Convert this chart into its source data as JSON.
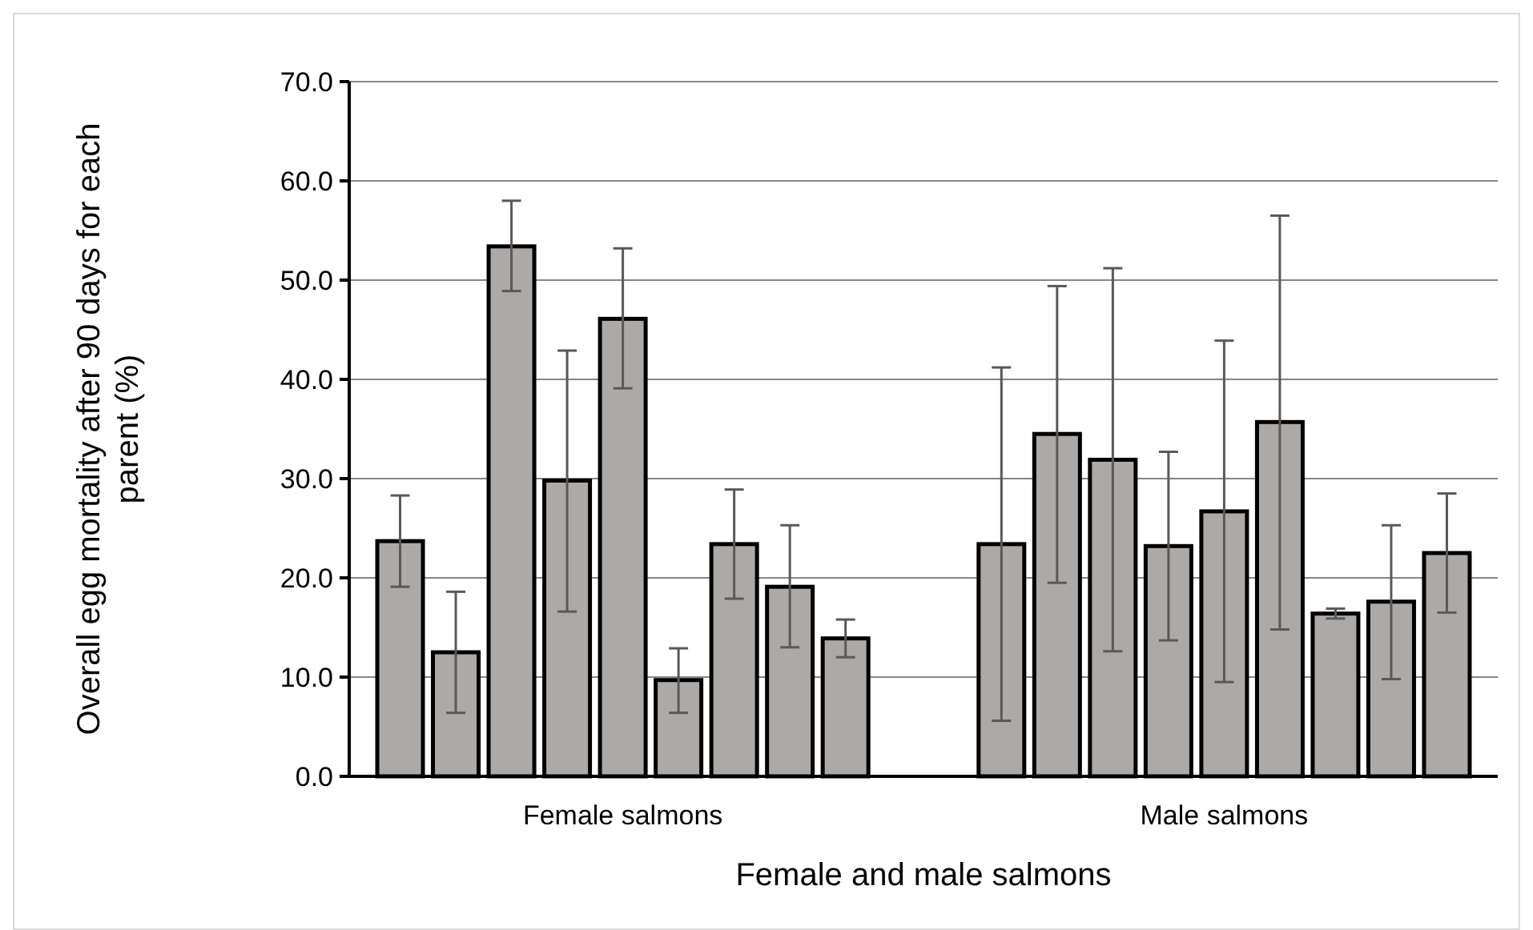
{
  "chart_data": {
    "type": "bar",
    "xlabel": "Female and male salmons",
    "ylabel": "Overall egg mortality after 90 days for each parent (%)",
    "categories": [
      "Female salmons",
      "Male salmons"
    ],
    "series": [
      {
        "color": "#ada9a7",
        "values": [
          23.7,
          23.4
        ],
        "errors": [
          [
            19.1,
            28.3
          ],
          [
            5.6,
            41.2
          ]
        ]
      },
      {
        "color": "#ada9a7",
        "values": [
          12.5,
          34.5
        ],
        "errors": [
          [
            6.4,
            18.6
          ],
          [
            19.5,
            49.4
          ]
        ]
      },
      {
        "color": "#ada9a7",
        "values": [
          53.4,
          31.9
        ],
        "errors": [
          [
            48.9,
            58.0
          ],
          [
            12.6,
            51.2
          ]
        ]
      },
      {
        "color": "#ada9a7",
        "values": [
          29.8,
          23.2
        ],
        "errors": [
          [
            16.6,
            42.9
          ],
          [
            13.7,
            32.7
          ]
        ]
      },
      {
        "color": "#ada9a7",
        "values": [
          46.1,
          26.7
        ],
        "errors": [
          [
            39.1,
            53.2
          ],
          [
            9.5,
            43.9
          ]
        ]
      },
      {
        "color": "#ada9a7",
        "values": [
          9.7,
          35.7
        ],
        "errors": [
          [
            6.4,
            12.9
          ],
          [
            14.8,
            56.5
          ]
        ]
      },
      {
        "color": "#ada9a7",
        "values": [
          23.4,
          16.4
        ],
        "errors": [
          [
            17.9,
            28.9
          ],
          [
            15.9,
            16.9
          ]
        ]
      },
      {
        "color": "#ada9a7",
        "values": [
          19.1,
          17.6
        ],
        "errors": [
          [
            13.0,
            25.3
          ],
          [
            9.8,
            25.3
          ]
        ]
      },
      {
        "color": "#ada9a7",
        "values": [
          13.9,
          22.5
        ],
        "errors": [
          [
            12.0,
            15.8
          ],
          [
            16.5,
            28.5
          ]
        ]
      }
    ],
    "ylim": [
      0,
      70
    ],
    "yticks": [
      {
        "value": 0,
        "label": "0.0"
      },
      {
        "value": 10,
        "label": "10.0"
      },
      {
        "value": 20,
        "label": "20.0"
      },
      {
        "value": 30,
        "label": "30.0"
      },
      {
        "value": 40,
        "label": "40.0"
      },
      {
        "value": 50,
        "label": "50.0"
      },
      {
        "value": 60,
        "label": "60.0"
      },
      {
        "value": 70,
        "label": "70.0"
      }
    ],
    "grid": "y"
  }
}
